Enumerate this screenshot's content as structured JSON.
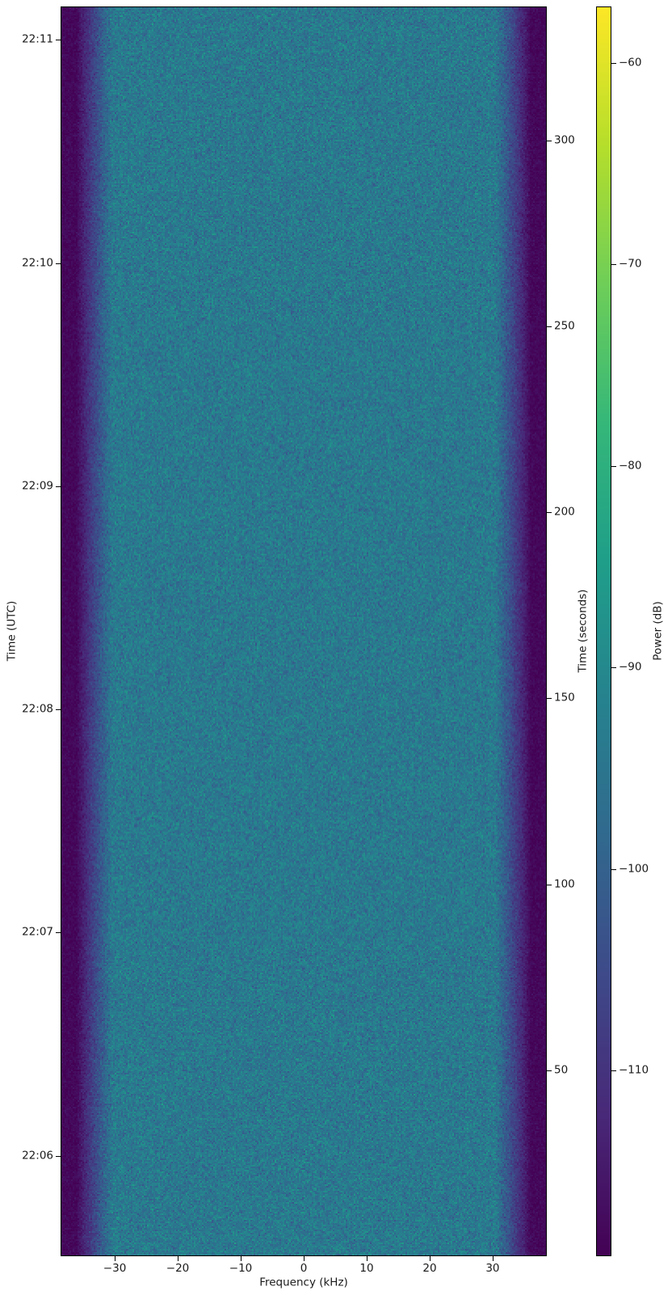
{
  "chart_data": {
    "type": "heatmap",
    "subtype": "spectrogram-waterfall",
    "title": "",
    "colormap": "viridis",
    "grid": false,
    "x_axis": {
      "label": "Frequency (kHz)",
      "min": -38.6,
      "max": 38.6,
      "ticks": [
        {
          "v": -30,
          "label": "−30"
        },
        {
          "v": -20,
          "label": "−20"
        },
        {
          "v": -10,
          "label": "−10"
        },
        {
          "v": 0,
          "label": "0"
        },
        {
          "v": 10,
          "label": "10"
        },
        {
          "v": 20,
          "label": "20"
        },
        {
          "v": 30,
          "label": "30"
        }
      ]
    },
    "y_axis_left": {
      "label": "Time (UTC)",
      "ticks": [
        {
          "s": 327,
          "label": "22:11"
        },
        {
          "s": 267,
          "label": "22:10"
        },
        {
          "s": 207,
          "label": "22:09"
        },
        {
          "s": 147,
          "label": "22:08"
        },
        {
          "s": 87,
          "label": "22:07"
        },
        {
          "s": 27,
          "label": "22:06"
        }
      ]
    },
    "y_axis_right": {
      "label": "Time (seconds)",
      "min": 0,
      "max": 336,
      "ticks": [
        {
          "v": 300,
          "label": "300"
        },
        {
          "v": 250,
          "label": "250"
        },
        {
          "v": 200,
          "label": "200"
        },
        {
          "v": 150,
          "label": "150"
        },
        {
          "v": 100,
          "label": "100"
        },
        {
          "v": 50,
          "label": "50"
        }
      ]
    },
    "colorbar": {
      "label": "Power (dB)",
      "min": -119.2,
      "max": -57.2,
      "ticks": [
        {
          "v": -60,
          "label": "−60"
        },
        {
          "v": -70,
          "label": "−70"
        },
        {
          "v": -80,
          "label": "−80"
        },
        {
          "v": -90,
          "label": "−90"
        },
        {
          "v": -100,
          "label": "−100"
        },
        {
          "v": -110,
          "label": "−110"
        }
      ]
    },
    "spectrum": {
      "passband_half_width_khz": 30.5,
      "rolloff_end_khz": 36.2,
      "passband_power_db": -94,
      "noise_floor_power_db": -118,
      "passband_noise_sigma_db": 3.2,
      "floor_noise_sigma_db": 1.0
    },
    "viridis_stops": [
      "#440154",
      "#482878",
      "#3e4989",
      "#31688e",
      "#26828e",
      "#1f9e89",
      "#35b779",
      "#6ece58",
      "#b5de2b",
      "#fde725"
    ]
  }
}
